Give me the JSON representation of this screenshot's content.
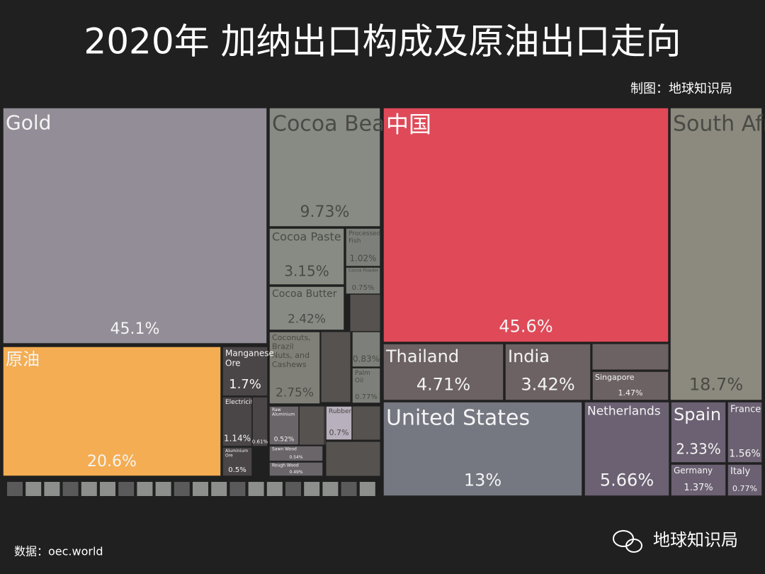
{
  "header": {
    "title": "2020年 加纳出口构成及原油出口走向",
    "credit": "制图：地球知识局"
  },
  "footer": {
    "source": "数据：oec.world",
    "logo": "地球知识局"
  },
  "chart_data": [
    {
      "type": "treemap",
      "categories": [
        "Gold",
        "原油",
        "Cocoa Beans",
        "Cocoa Paste",
        "Cocoa Butter",
        "Coconuts, Brazil Nuts, and Cashews",
        "Manganese Ore",
        "Electricity",
        null,
        "Aluminium Ore",
        "Processed Fish",
        "Cocoa Powder",
        null,
        "Palm Oil",
        "Rubber",
        "Raw Aluminium",
        "Sawn Wood",
        "Rough Wood"
      ],
      "values": [
        45.1,
        20.6,
        9.73,
        3.15,
        2.42,
        2.75,
        1.7,
        1.14,
        0.61,
        0.5,
        1.02,
        0.75,
        0.83,
        0.77,
        0.7,
        0.52,
        0.54,
        0.49
      ],
      "value_labels": [
        "45.1%",
        "20.6%",
        "9.73%",
        "3.15%",
        "2.42%",
        "2.75%",
        "1.7%",
        "1.14%",
        "0.61%",
        "0.5%",
        "1.02%",
        "0.75%",
        "0.83%",
        "0.77%",
        "0.7%",
        "0.52%",
        "0.54%",
        "0.49%"
      ],
      "colors": [
        "#938d97",
        "#f4ad52",
        "#888b83",
        "#888b83",
        "#888b83",
        "#808078",
        "#4a4546",
        "#4a4546",
        "#4a4546",
        "#4a4546",
        "#7d807a",
        "#7d807a",
        "#7d807a",
        "#7d807a",
        "#b8b1bd",
        "#6a6569",
        "#6a6569",
        "#6a6569"
      ]
    },
    {
      "type": "treemap",
      "categories": [
        "中国",
        "South Africa",
        "United States",
        "Netherlands",
        "Thailand",
        "India",
        "Spain",
        "France",
        "Singapore",
        "Germany",
        "Italy"
      ],
      "values": [
        45.6,
        18.7,
        13,
        5.66,
        4.71,
        3.42,
        2.33,
        1.56,
        1.47,
        1.37,
        0.77
      ],
      "value_labels": [
        "45.6%",
        "18.7%",
        "13%",
        "5.66%",
        "4.71%",
        "3.42%",
        "2.33%",
        "1.56%",
        "1.47%",
        "1.37%",
        "0.77%"
      ],
      "colors": [
        "#df4958",
        "#8c8a7e",
        "#757781",
        "#6b6172",
        "#6c6263",
        "#6c6263",
        "#6b6172",
        "#6b6172",
        "#6c6263",
        "#6b6172",
        "#6b6172"
      ]
    }
  ]
}
